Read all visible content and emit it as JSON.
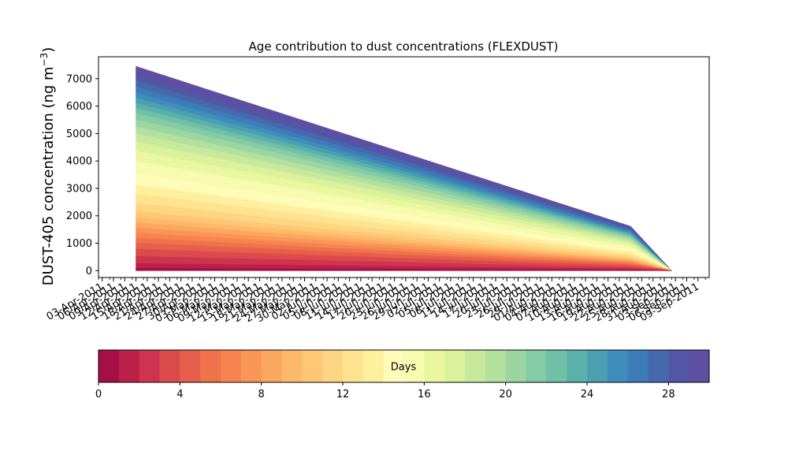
{
  "chart_data": {
    "type": "area",
    "title": "Age contribution to dust concentrations (FLEXDUST)",
    "ylabel_prefix": "DUST-405 concentration (ng m",
    "ylabel_sup": "−3",
    "ylabel_suffix": ")",
    "ylim": [
      -250,
      7800
    ],
    "y_ticks": [
      0,
      1000,
      2000,
      3000,
      4000,
      5000,
      6000,
      7000
    ],
    "x_start_date": "2011-04-03",
    "x_end_date": "2011-09-12",
    "x_tick_labels": [
      "03-Apr-2011",
      "06-Apr-2011",
      "09-Apr-2011",
      "12-Apr-2011",
      "15-Apr-2011",
      "18-Apr-2011",
      "21-Apr-2011",
      "24-Apr-2011",
      "27-Apr-2011",
      "30-Apr-2011",
      "03-May-2011",
      "06-May-2011",
      "09-May-2011",
      "12-May-2011",
      "15-May-2011",
      "18-May-2011",
      "21-May-2011",
      "24-May-2011",
      "27-May-2011",
      "30-May-2011",
      "02-Jun-2011",
      "05-Jun-2011",
      "08-Jun-2011",
      "11-Jun-2011",
      "14-Jun-2011",
      "17-Jun-2011",
      "20-Jun-2011",
      "23-Jun-2011",
      "26-Jun-2011",
      "29-Jun-2011",
      "02-Jul-2011",
      "05-Jul-2011",
      "08-Jul-2011",
      "11-Jul-2011",
      "14-Jul-2011",
      "17-Jul-2011",
      "20-Jul-2011",
      "23-Jul-2011",
      "26-Jul-2011",
      "29-Jul-2011",
      "01-Aug-2011",
      "04-Aug-2011",
      "07-Aug-2011",
      "10-Aug-2011",
      "13-Aug-2011",
      "16-Aug-2011",
      "19-Aug-2011",
      "22-Aug-2011",
      "25-Aug-2011",
      "28-Aug-2011",
      "31-Aug-2011",
      "03-Sep-2011",
      "06-Sep-2011",
      "09-Sep-2011"
    ],
    "series_x_dates": [
      "2011-04-12",
      "2011-08-22",
      "2011-09-02"
    ],
    "total_values": [
      7450,
      1620,
      0
    ],
    "cumulative_fractions": [
      0.012,
      0.035,
      0.07,
      0.105,
      0.135,
      0.16,
      0.185,
      0.21,
      0.235,
      0.26,
      0.29,
      0.33,
      0.375,
      0.42,
      0.475,
      0.535,
      0.585,
      0.63,
      0.67,
      0.705,
      0.74,
      0.77,
      0.795,
      0.82,
      0.845,
      0.87,
      0.9,
      0.93,
      0.96,
      1.0
    ],
    "colorbar": {
      "label": "Days",
      "min": 0,
      "max": 30,
      "ticks": [
        0,
        4,
        8,
        12,
        16,
        20,
        24,
        28
      ],
      "colors": [
        "#a50f45",
        "#bb2049",
        "#cf3350",
        "#dc4b4c",
        "#e65f4b",
        "#f0724a",
        "#f7844e",
        "#f99557",
        "#fca760",
        "#fdb96a",
        "#fdc776",
        "#fed583",
        "#fee391",
        "#fff0a0",
        "#fffbb8",
        "#f6fbb0",
        "#eaf7a1",
        "#dbf19c",
        "#c8e99b",
        "#b3e09f",
        "#9bd6a2",
        "#85cba5",
        "#70c0a8",
        "#5bb1aa",
        "#4aa0b0",
        "#3f8dba",
        "#3d7cb8",
        "#4669ad",
        "#5356a6",
        "#5e4fa2"
      ]
    }
  }
}
